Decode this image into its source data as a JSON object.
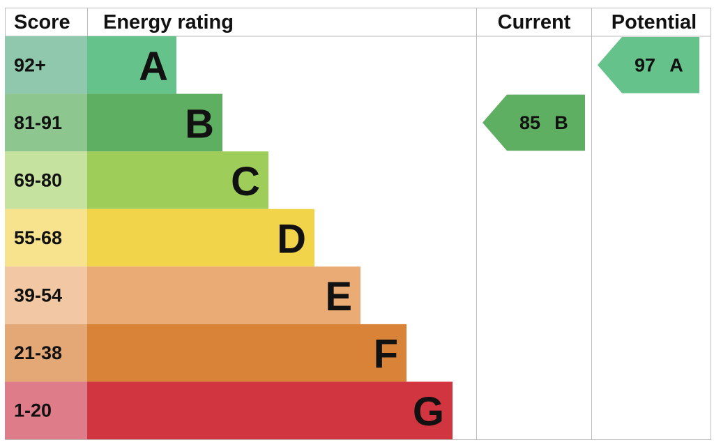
{
  "header": {
    "score": "Score",
    "rating": "Energy rating",
    "current": "Current",
    "potential": "Potential"
  },
  "bands": [
    {
      "score": "92+",
      "letter": "A",
      "color": "#66c28b",
      "score_color": "#8fc8ac"
    },
    {
      "score": "81-91",
      "letter": "B",
      "color": "#5faf62",
      "score_color": "#8ec690"
    },
    {
      "score": "69-80",
      "letter": "C",
      "color": "#9ecd5a",
      "score_color": "#c6e29f"
    },
    {
      "score": "55-68",
      "letter": "D",
      "color": "#f2d44b",
      "score_color": "#f7e38e"
    },
    {
      "score": "39-54",
      "letter": "E",
      "color": "#eaab74",
      "score_color": "#f1c8a3"
    },
    {
      "score": "21-38",
      "letter": "F",
      "color": "#d98338",
      "score_color": "#e4a876"
    },
    {
      "score": "1-20",
      "letter": "G",
      "color": "#d1353f",
      "score_color": "#de7c89"
    }
  ],
  "current": {
    "value": "85",
    "letter": "B"
  },
  "potential": {
    "value": "97",
    "letter": "A"
  }
}
